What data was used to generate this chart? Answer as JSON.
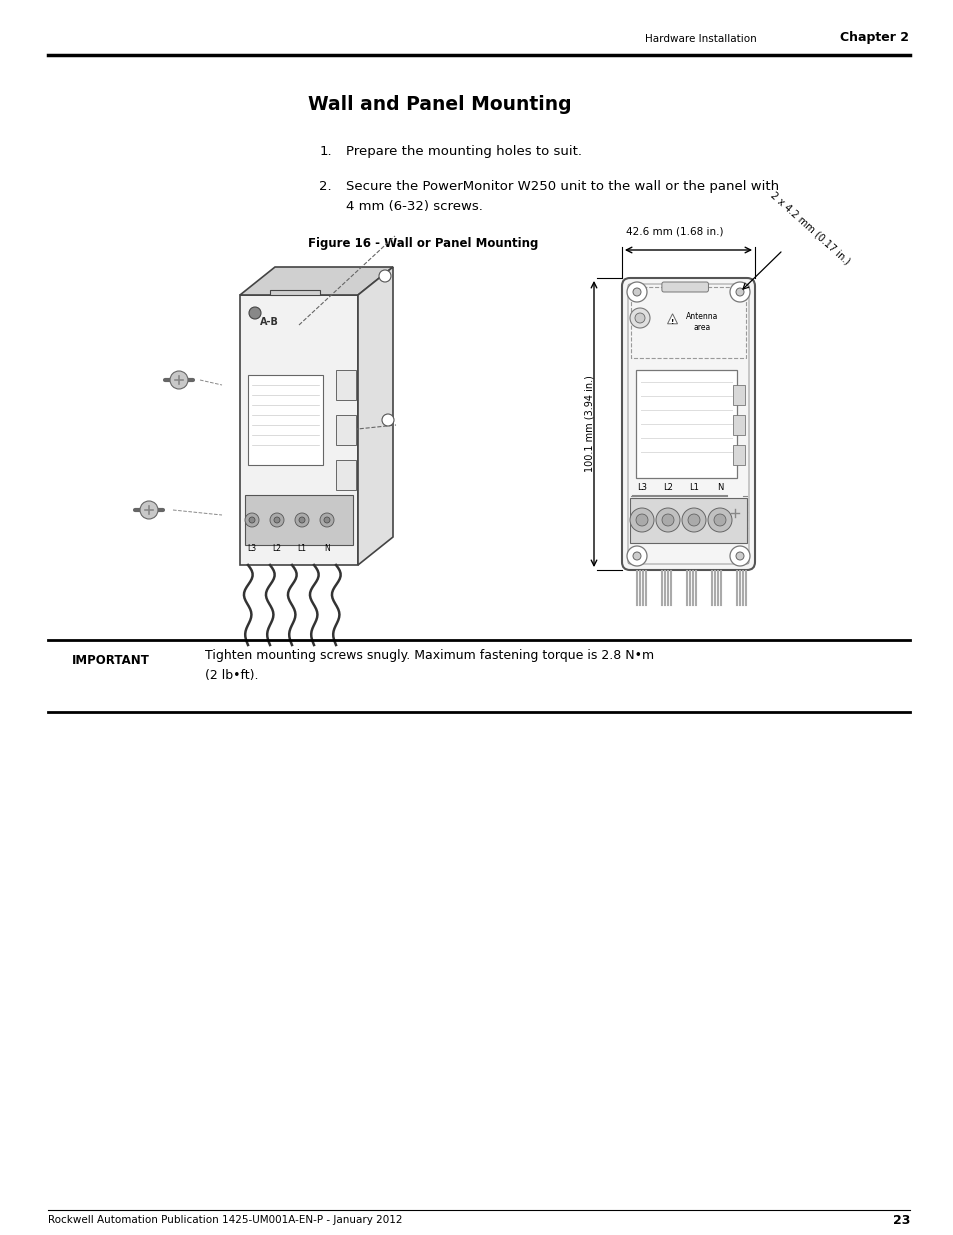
{
  "page_width": 9.54,
  "page_height": 12.35,
  "dpi": 100,
  "bg_color": "#ffffff",
  "header_text_left": "Hardware Installation",
  "header_text_right": "Chapter 2",
  "title": "Wall and Panel Mounting",
  "step1": "Prepare the mounting holes to suit.",
  "step2_line1": "Secure the PowerMonitor W250 unit to the wall or the panel with",
  "step2_line2": "4 mm (6-32) screws.",
  "fig_caption": "Figure 16 - Wall or Panel Mounting",
  "important_label": "IMPORTANT",
  "important_line1": "Tighten mounting screws snugly. Maximum fastening torque is 2.8 N•m",
  "important_line2": "(2 lb•ft).",
  "footer_text": "Rockwell Automation Publication 1425-UM001A-EN-P - January 2012",
  "footer_page": "23",
  "dim_width": "42.6 mm (1.68 in.)",
  "dim_height": "100.1 mm (3.94 in.)",
  "dim_hole": "2 x 4.2 mm (0.17 in.)",
  "label_antenna": "Antenna\narea",
  "label_l3": "L3",
  "label_l2": "L2",
  "label_l1": "L1",
  "label_n": "N"
}
